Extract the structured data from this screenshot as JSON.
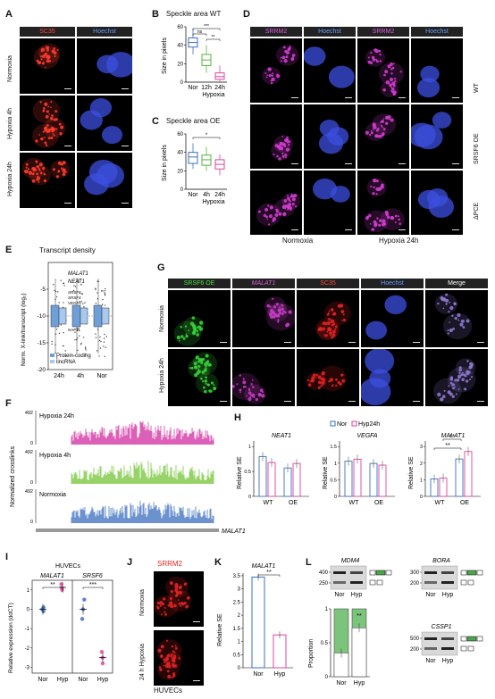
{
  "panels": {
    "A": "A",
    "B": "B",
    "C": "C",
    "D": "D",
    "E": "E",
    "F": "F",
    "G": "G",
    "H": "H",
    "I": "I",
    "J": "J",
    "K": "K",
    "L": "L"
  },
  "A": {
    "headers": [
      "SC35",
      "Hoechst"
    ],
    "rows": [
      "Normoxia",
      "Hypoxia 4h",
      "Hypoxia 24h"
    ]
  },
  "B": {
    "title": "Speckle area WT",
    "ylabel": "Size in pixels",
    "xticks": [
      "Nor",
      "12h",
      "24h"
    ],
    "xlabel": "Hypoxia",
    "sig": [
      "***",
      "ns",
      "**"
    ],
    "yticks": [
      "0",
      "20",
      "40",
      "60"
    ]
  },
  "C": {
    "title": "Speckle area OE",
    "ylabel": "Size in pixels",
    "xticks": [
      "Nor",
      "4h",
      "24h"
    ],
    "xlabel": "Hypoxia",
    "sig": [
      "*"
    ],
    "yticks": [
      "0",
      "20",
      "40",
      "60"
    ]
  },
  "D": {
    "headers": [
      "SRRM2",
      "Hoechst",
      "SRRM2",
      "Hoechst"
    ],
    "rows": [
      "WT",
      "SRSF6 OE",
      "ΔPCE"
    ],
    "cols": [
      "Normoxia",
      "Hypoxia 24h"
    ]
  },
  "E": {
    "title": "Transcript density",
    "ylabel": "Norm. X-link/transcript (log₂)",
    "yticks": [
      "-5",
      "-10",
      "-15",
      "-20"
    ],
    "xticks": [
      "24h",
      "4h",
      "Nor"
    ],
    "genes": [
      "MALAT1",
      "NEAT1",
      "SRSF6",
      "SRSF4",
      "VEGFA",
      "NAP1L"
    ],
    "legend": [
      "Protein-coding",
      "lincRNA"
    ]
  },
  "F": {
    "tracks": [
      "Hypoxia 24h",
      "Hypoxia 4h",
      "Normoxia"
    ],
    "ymax": "492",
    "ylabel": "Normalized crosslinks",
    "gene": "MALAT1"
  },
  "G": {
    "headers": [
      "SRSF6 OE",
      "MALAT1",
      "SC35",
      "Hoechst",
      "Merge"
    ],
    "rows": [
      "Normoxia",
      "Hypoxia 24h"
    ]
  },
  "H": {
    "legend": [
      "Nor",
      "Hyp24h"
    ],
    "ylabel": "Relative SE",
    "subplots": [
      {
        "gene": "NEAT1",
        "xticks": [
          "WT",
          "OE"
        ],
        "values": [
          [
            0.8,
            0.68
          ],
          [
            0.57,
            0.66
          ]
        ],
        "ymax": 1
      },
      {
        "gene": "VEGFA",
        "xticks": [
          "WT",
          "OE"
        ],
        "values": [
          [
            1.06,
            1.12
          ],
          [
            0.99,
            0.94
          ]
        ],
        "ymax": 1.5
      },
      {
        "gene": "MALAT1",
        "xticks": [
          "WT",
          "OE"
        ],
        "values": [
          [
            1.05,
            1.1
          ],
          [
            2.25,
            2.7
          ]
        ],
        "ymax": 3,
        "sig": [
          "**",
          "**"
        ]
      }
    ]
  },
  "I": {
    "title": "HUVECs",
    "ylabel": "Relative expression (ddCT)",
    "genes": [
      "MALAT1",
      "SRSF6"
    ],
    "xticks": [
      "Nor",
      "Hyp"
    ],
    "yticks": [
      "1",
      "0",
      "-1",
      "-2",
      "-3"
    ],
    "sig": [
      "**",
      "***"
    ],
    "points": {
      "MALAT1": {
        "Nor": [
          0.0,
          -0.1,
          0.1
        ],
        "Hyp": [
          1.1,
          1.3,
          1.0
        ]
      },
      "SRSF6": {
        "Nor": [
          0.0,
          -0.5,
          0.5
        ],
        "Hyp": [
          -2.2,
          -2.5,
          -2.8
        ]
      }
    }
  },
  "J": {
    "title": "SRRM2",
    "rows": [
      "Normoxia",
      "24 h Hypoxia"
    ],
    "caption": "HUVECs"
  },
  "K": {
    "gene": "MALAT1",
    "ylabel": "Relative SE",
    "xticks": [
      "Nor",
      "Hyp"
    ],
    "yticks": [
      "0",
      "0.5",
      "1",
      "1.5",
      "2",
      "2.5",
      "3",
      "3.5"
    ],
    "values": [
      3.45,
      1.25
    ],
    "sig": "**"
  },
  "L": {
    "genes": [
      "MDM4",
      "BORA",
      "CSSP1"
    ],
    "ladder": [
      [
        "400",
        "250"
      ],
      [
        "300",
        "200"
      ],
      [
        "500",
        "200"
      ]
    ],
    "xticks": [
      "Nor",
      "Hyp"
    ],
    "ylabel": "Proportion",
    "yticks": [
      "0",
      "0.5",
      "1"
    ],
    "proportion": [
      0.35,
      0.72
    ],
    "sig": "**"
  },
  "colors": {
    "nor": "#3a6fc4",
    "hyp": "#e0449c",
    "pink": "#e84d9a",
    "green": "#57b33a",
    "blue": "#5b86c9",
    "red": "#e02424",
    "magenta": "#c33bc3",
    "box_pc": "#6f9fd8",
    "box_lnc": "#a9c8ee"
  }
}
